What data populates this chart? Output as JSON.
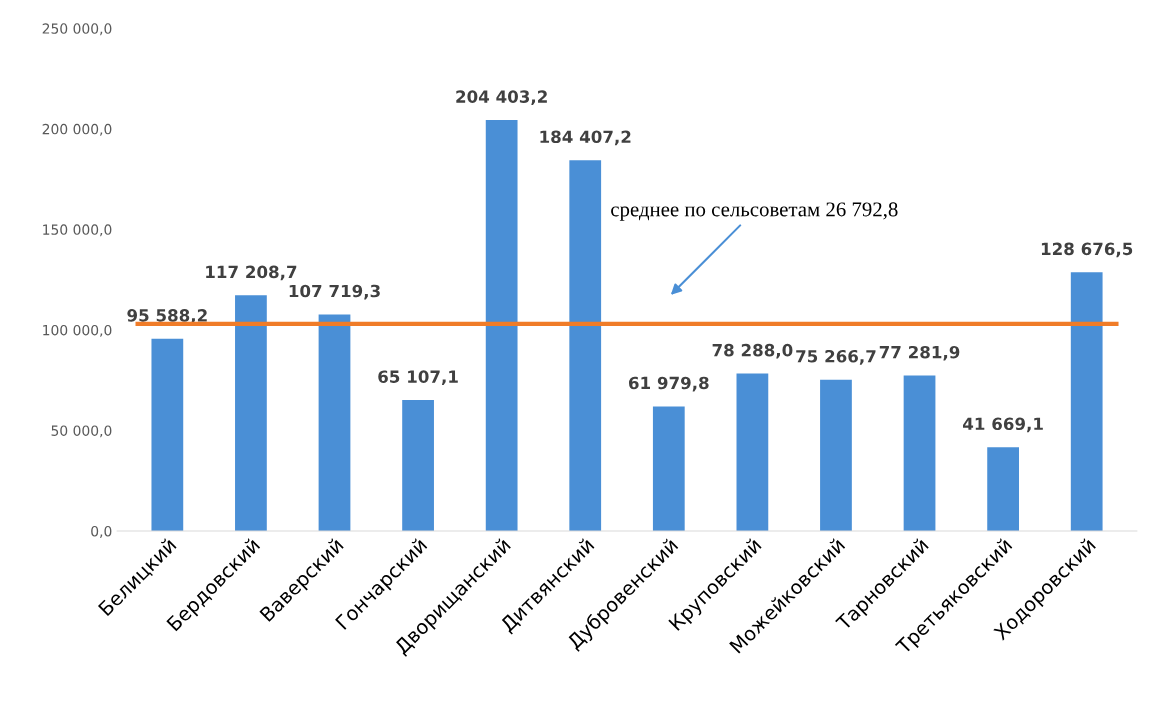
{
  "chart_data": {
    "type": "bar",
    "categories": [
      "Белицкий",
      "Бердовский",
      "Ваверский",
      "Гончарский",
      "Дворищанский",
      "Дитвянский",
      "Дубровенский",
      "Круповский",
      "Можейковский",
      "Тарновский",
      "Третьяковский",
      "Ходоровский"
    ],
    "values": [
      95588.2,
      117208.7,
      107719.3,
      65107.1,
      204403.2,
      184407.2,
      61979.8,
      78288.0,
      75266.7,
      77281.9,
      41669.1,
      128676.5
    ],
    "value_labels": [
      "95 588,2",
      "117 208,7",
      "107 719,3",
      "65 107,1",
      "204 403,2",
      "184 407,2",
      "61 979,8",
      "78 288,0",
      "75 266,7",
      "77 281,9",
      "41 669,1",
      "128 676,5"
    ],
    "color": "#4a8fd6",
    "ylim": [
      0,
      250000
    ],
    "yticks": [
      {
        "value": 0,
        "label": "0,0"
      },
      {
        "value": 50000,
        "label": "50 000,0"
      },
      {
        "value": 100000,
        "label": "100 000,0"
      },
      {
        "value": 150000,
        "label": "150 000,0"
      },
      {
        "value": 200000,
        "label": "200 000,0"
      },
      {
        "value": 250000,
        "label": "250 000,0"
      }
    ],
    "ref_lines": [
      {
        "axis": "y",
        "value": 103000,
        "color": "#f07c28"
      }
    ],
    "annotations": [
      "среднее по сельсоветам 26 792,8"
    ],
    "grid": false,
    "legend": false
  }
}
